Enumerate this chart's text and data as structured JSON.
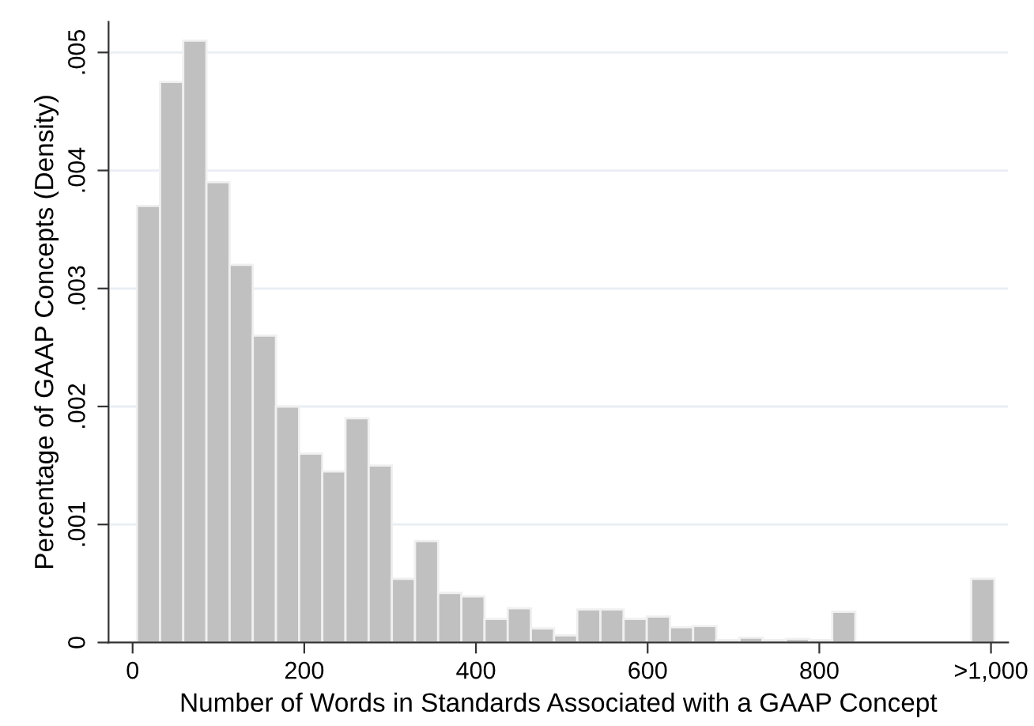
{
  "chart_data": {
    "type": "histogram",
    "xlabel": "Number of Words in Standards Associated with a GAAP Concept",
    "ylabel": "Percentage of GAAP Concepts (Density)",
    "bins": [
      5,
      32,
      59,
      86,
      113,
      140,
      167,
      194,
      221,
      248,
      275,
      302,
      329,
      356,
      383,
      410,
      437,
      464,
      491,
      518,
      545,
      572,
      599,
      626,
      653,
      680,
      707,
      734,
      761,
      788,
      815,
      842,
      869,
      896,
      923,
      950,
      977,
      1004
    ],
    "values": [
      0.0037,
      0.00475,
      0.0051,
      0.0039,
      0.0032,
      0.0026,
      0.002,
      0.0016,
      0.00145,
      0.0019,
      0.0015,
      0.00054,
      0.00086,
      0.00042,
      0.00039,
      0.0002,
      0.00029,
      0.00012,
      6e-05,
      0.00028,
      0.00028,
      0.0002,
      0.00022,
      0.00013,
      0.00014,
      2e-05,
      4e-05,
      2e-05,
      3e-05,
      2e-05,
      0.00026,
      0,
      0,
      0,
      0,
      0,
      0.00054
    ],
    "color": "#c0c0c0",
    "xlim": [
      -28,
      1020
    ],
    "ylim": [
      0,
      0.00526
    ],
    "xticks": [
      0,
      200,
      400,
      600,
      800,
      {
        "value": 1000,
        "label": ">1,000"
      }
    ],
    "yticks": [
      {
        "value": 0,
        "label": "0"
      },
      {
        "value": 0.001,
        "label": ".001"
      },
      {
        "value": 0.002,
        "label": ".002"
      },
      {
        "value": 0.003,
        "label": ".003"
      },
      {
        "value": 0.004,
        "label": ".004"
      },
      {
        "value": 0.005,
        "label": ".005"
      }
    ],
    "grid": "y"
  }
}
